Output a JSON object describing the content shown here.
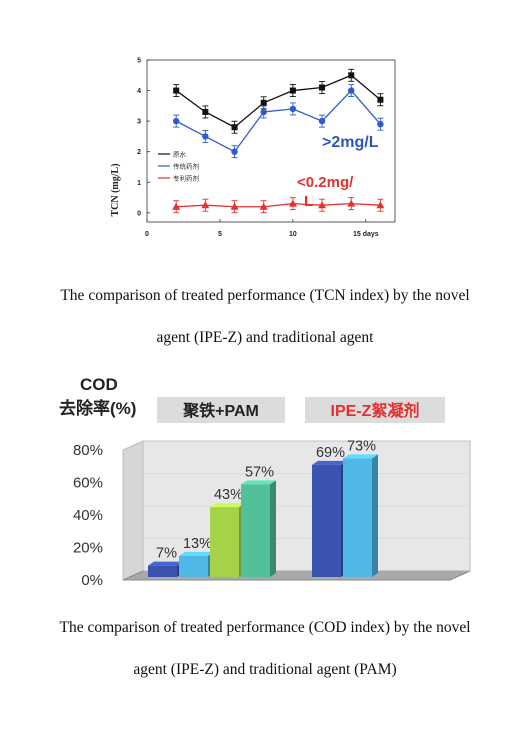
{
  "captions": {
    "tcn_line1": "The comparison of treated performance (TCN index) by the novel",
    "tcn_line2": "agent (IPE-Z) and traditional agent",
    "cod_line1": "The comparison of treated performance (COD index) by the novel",
    "cod_line2": "agent (IPE-Z) and traditional agent (PAM)"
  },
  "chart_data": [
    {
      "type": "line",
      "ylabel": "TCN (mg/L)",
      "xlabel": "days",
      "xlim": [
        0,
        17
      ],
      "ylim": [
        -0.3,
        5
      ],
      "x_ticks": [
        0,
        5,
        10,
        15
      ],
      "x_tick_labels": [
        "0",
        "5",
        "10",
        "15 days"
      ],
      "y_ticks": [
        0,
        1,
        2,
        3,
        4,
        5
      ],
      "grid": false,
      "legend_position": "left",
      "x": [
        2,
        4,
        6,
        8,
        10,
        12,
        14,
        16
      ],
      "series": [
        {
          "name": "原水",
          "color": "#111111",
          "marker": "square",
          "values": [
            4.0,
            3.3,
            2.8,
            3.6,
            4.0,
            4.1,
            4.5,
            3.7
          ]
        },
        {
          "name": "传统药剂",
          "color": "#2f5bd0",
          "marker": "circle",
          "values": [
            3.0,
            2.5,
            2.0,
            3.3,
            3.4,
            3.0,
            4.0,
            2.9
          ]
        },
        {
          "name": "专利药剂",
          "color": "#e53030",
          "marker": "triangle",
          "values": [
            0.2,
            0.25,
            0.2,
            0.2,
            0.3,
            0.25,
            0.3,
            0.25
          ]
        }
      ],
      "annotations": [
        {
          "text": ">2mg/L",
          "color": "#2e57b8"
        },
        {
          "text": "<0.2mg/",
          "color": "#e53030"
        },
        {
          "text": "L",
          "color": "#e53030"
        }
      ]
    },
    {
      "type": "bar",
      "title_line1": "COD",
      "title_line2": "去除率(%)",
      "ylim": [
        0,
        80
      ],
      "y_ticks": [
        0,
        20,
        40,
        60,
        80
      ],
      "y_tick_labels": [
        "0%",
        "20%",
        "40%",
        "60%",
        "80%"
      ],
      "groups": [
        {
          "label": "聚铁+PAM",
          "label_color": "#222222",
          "box_color": "#dcdcdc",
          "bars": [
            {
              "value": 7,
              "label": "7%",
              "color": "#3a54b0"
            },
            {
              "value": 13,
              "label": "13%",
              "color": "#4fb8e6"
            },
            {
              "value": 43,
              "label": "43%",
              "color": "#a6d24a"
            },
            {
              "value": 57,
              "label": "57%",
              "color": "#4fc09a"
            }
          ]
        },
        {
          "label": "IPE-Z絮凝剂",
          "label_color": "#e03030",
          "box_color": "#dcdcdc",
          "bars": [
            {
              "value": 69,
              "label": "69%",
              "color": "#3a54b0"
            },
            {
              "value": 73,
              "label": "73%",
              "color": "#4fb8e6"
            }
          ]
        }
      ]
    }
  ]
}
